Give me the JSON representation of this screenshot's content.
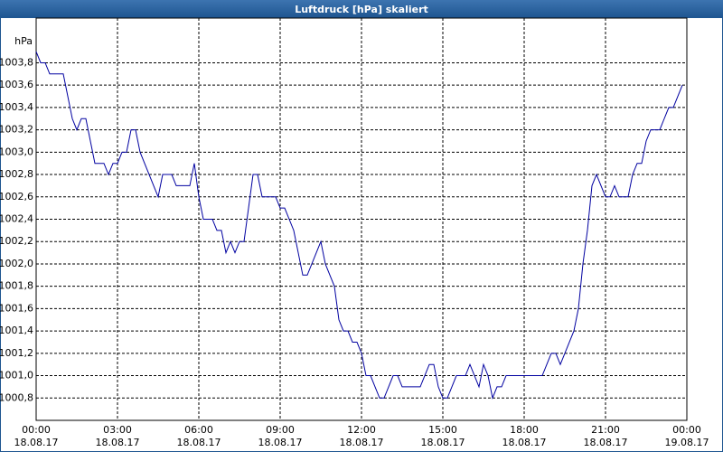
{
  "chart_data": {
    "type": "line",
    "title": "Luftdruck [hPa] skaliert",
    "y_label": "hPa",
    "color": "#0000a0",
    "grid": true,
    "xlim": [
      0,
      1440
    ],
    "xticks": [
      {
        "value": 0,
        "label": "00:00"
      },
      {
        "value": 180,
        "label": "03:00"
      },
      {
        "value": 360,
        "label": "06:00"
      },
      {
        "value": 540,
        "label": "09:00"
      },
      {
        "value": 720,
        "label": "12:00"
      },
      {
        "value": 900,
        "label": "15:00"
      },
      {
        "value": 1080,
        "label": "18:00"
      },
      {
        "value": 1260,
        "label": "21:00"
      },
      {
        "value": 1440,
        "label": "00:00"
      }
    ],
    "xtick_dates": [
      "18.08.17",
      "18.08.17",
      "18.08.17",
      "18.08.17",
      "18.08.17",
      "18.08.17",
      "18.08.17",
      "18.08.17",
      "19.08.17"
    ],
    "ylim": [
      1000.6,
      1004.2
    ],
    "yticks": [
      {
        "value": 1000.8,
        "label": "1000,8"
      },
      {
        "value": 1001.0,
        "label": "1001,0"
      },
      {
        "value": 1001.2,
        "label": "1001,2"
      },
      {
        "value": 1001.4,
        "label": "1001,4"
      },
      {
        "value": 1001.6,
        "label": "1001,6"
      },
      {
        "value": 1001.8,
        "label": "1001,8"
      },
      {
        "value": 1002.0,
        "label": "1002,0"
      },
      {
        "value": 1002.2,
        "label": "1002,2"
      },
      {
        "value": 1002.4,
        "label": "1002,4"
      },
      {
        "value": 1002.6,
        "label": "1002,6"
      },
      {
        "value": 1002.8,
        "label": "1002,8"
      },
      {
        "value": 1003.0,
        "label": "1003,0"
      },
      {
        "value": 1003.2,
        "label": "1003,2"
      },
      {
        "value": 1003.4,
        "label": "1003,4"
      },
      {
        "value": 1003.6,
        "label": "1003,6"
      },
      {
        "value": 1003.8,
        "label": "1003,8"
      }
    ],
    "x": [
      0,
      10,
      20,
      30,
      60,
      70,
      80,
      90,
      100,
      110,
      120,
      130,
      150,
      160,
      170,
      180,
      190,
      200,
      210,
      220,
      230,
      240,
      250,
      260,
      270,
      280,
      300,
      310,
      340,
      350,
      360,
      370,
      390,
      400,
      410,
      420,
      430,
      440,
      450,
      460,
      470,
      480,
      490,
      500,
      530,
      540,
      550,
      560,
      570,
      580,
      590,
      600,
      610,
      620,
      630,
      640,
      650,
      660,
      670,
      680,
      690,
      700,
      710,
      720,
      730,
      740,
      750,
      760,
      770,
      780,
      790,
      800,
      810,
      850,
      860,
      870,
      880,
      890,
      900,
      910,
      920,
      930,
      950,
      960,
      970,
      980,
      990,
      1000,
      1010,
      1020,
      1030,
      1040,
      1120,
      1130,
      1140,
      1150,
      1160,
      1170,
      1180,
      1190,
      1200,
      1210,
      1220,
      1230,
      1240,
      1250,
      1260,
      1270,
      1280,
      1290,
      1310,
      1320,
      1330,
      1340,
      1350,
      1360,
      1380,
      1390,
      1400,
      1410,
      1420,
      1430
    ],
    "values": [
      1003.9,
      1003.8,
      1003.8,
      1003.7,
      1003.7,
      1003.5,
      1003.3,
      1003.2,
      1003.3,
      1003.3,
      1003.1,
      1002.9,
      1002.9,
      1002.8,
      1002.9,
      1002.9,
      1003.0,
      1003.0,
      1003.2,
      1003.2,
      1003.0,
      1002.9,
      1002.8,
      1002.7,
      1002.6,
      1002.8,
      1002.8,
      1002.7,
      1002.7,
      1002.9,
      1002.6,
      1002.4,
      1002.4,
      1002.3,
      1002.3,
      1002.1,
      1002.2,
      1002.1,
      1002.2,
      1002.2,
      1002.5,
      1002.8,
      1002.8,
      1002.6,
      1002.6,
      1002.5,
      1002.5,
      1002.4,
      1002.3,
      1002.1,
      1001.9,
      1001.9,
      1002.0,
      1002.1,
      1002.2,
      1002.0,
      1001.9,
      1001.8,
      1001.5,
      1001.4,
      1001.4,
      1001.3,
      1001.3,
      1001.2,
      1001.0,
      1001.0,
      1000.9,
      1000.8,
      1000.8,
      1000.9,
      1001.0,
      1001.0,
      1000.9,
      1000.9,
      1001.0,
      1001.1,
      1001.1,
      1000.9,
      1000.8,
      1000.8,
      1000.9,
      1001.0,
      1001.0,
      1001.1,
      1001.0,
      1000.9,
      1001.1,
      1001.0,
      1000.8,
      1000.9,
      1000.9,
      1001.0,
      1001.0,
      1001.1,
      1001.2,
      1001.2,
      1001.1,
      1001.2,
      1001.3,
      1001.4,
      1001.6,
      1002.0,
      1002.3,
      1002.7,
      1002.8,
      1002.7,
      1002.6,
      1002.6,
      1002.7,
      1002.6,
      1002.6,
      1002.8,
      1002.9,
      1002.9,
      1003.1,
      1003.2,
      1003.2,
      1003.3,
      1003.4,
      1003.4,
      1003.5,
      1003.6
    ]
  }
}
